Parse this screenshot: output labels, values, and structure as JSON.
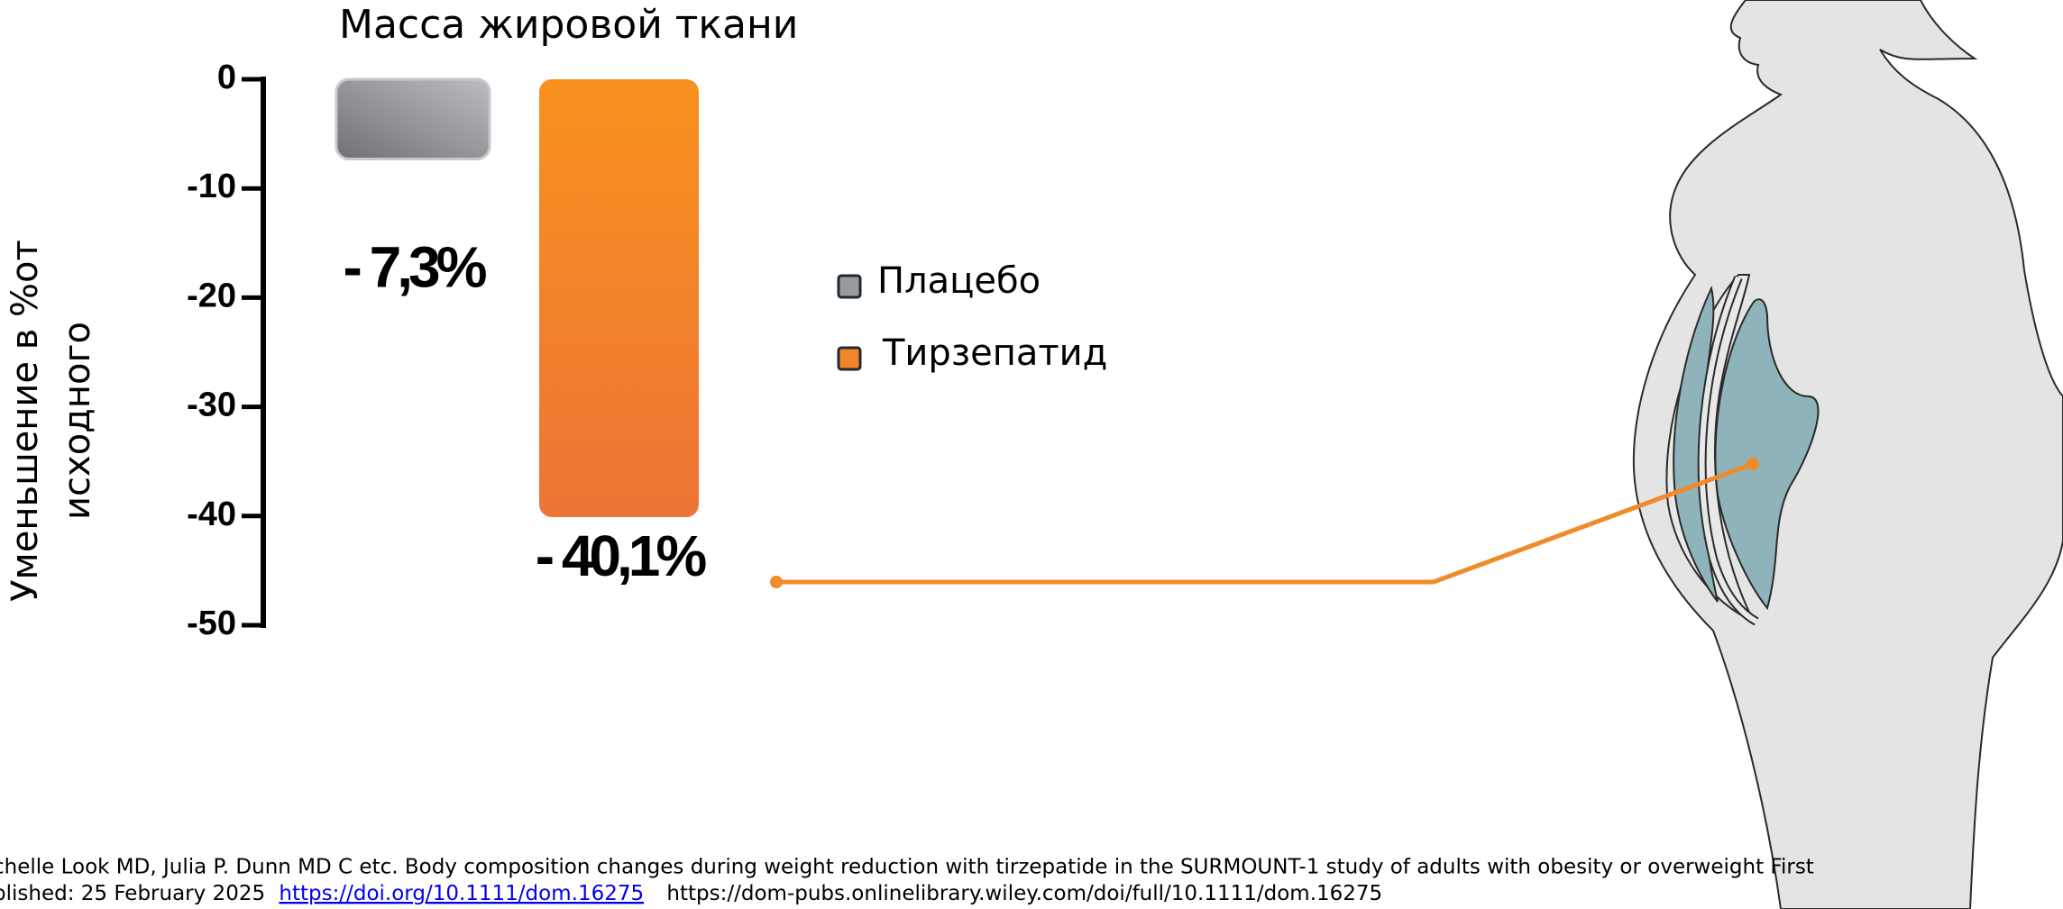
{
  "chart_data": {
    "type": "bar",
    "title": "Масса жировой ткани",
    "ylabel": [
      "Уменьшение в %от",
      "исходного"
    ],
    "ylim": [
      -50,
      0
    ],
    "yticks": [
      0,
      -10,
      -20,
      -30,
      -40,
      -50
    ],
    "series": [
      {
        "name": "Плацебо",
        "color": "#9a9a9e",
        "values": [
          -7.3
        ],
        "value_labels": [
          "- 7,3%"
        ]
      },
      {
        "name": "Тирзепатид",
        "color": "#f3842a",
        "values": [
          -40.1
        ],
        "value_labels": [
          "- 40,1%"
        ]
      }
    ]
  },
  "source": {
    "line1": "chelle Look MD, Julia P. Dunn MD C etc. Body composition changes during weight reduction with tirzepatide in the SURMOUNT-1 study of adults with obesity or overweight First",
    "line2_prefix": "blished: 25 February 2025",
    "link": "https://doi.org/10.1111/dom.16275",
    "line2_suffix": "https://dom-pubs.onlinelibrary.wiley.com/doi/full/10.1111/dom.16275"
  }
}
